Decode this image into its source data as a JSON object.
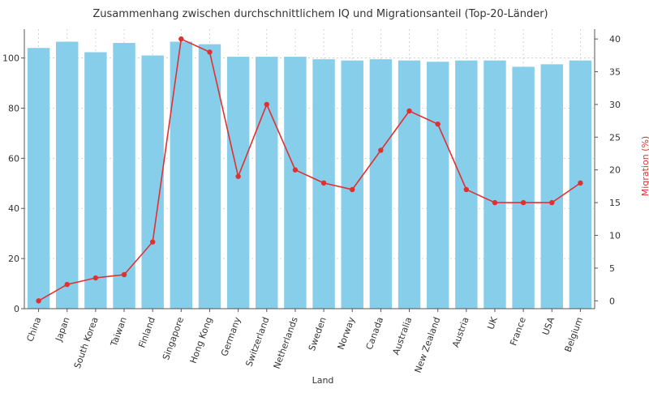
{
  "chart_data": {
    "type": "bar",
    "title": "Zusammenhang zwischen durchschnittlichem IQ und Migrationsanteil (Top-20-Länder)",
    "xlabel": "Land",
    "ylabel": "",
    "y2label": "Migration (%)",
    "categories": [
      "China",
      "Japan",
      "South Korea",
      "Taiwan",
      "Finland",
      "Singapore",
      "Hong Kong",
      "Germany",
      "Switzerland",
      "Netherlands",
      "Sweden",
      "Norway",
      "Canada",
      "Australia",
      "New Zealand",
      "Austria",
      "UK",
      "France",
      "USA",
      "Belgium"
    ],
    "series": [
      {
        "type": "bar",
        "axis": "left",
        "color": "#87ceeb",
        "values": [
          104,
          106.5,
          102.3,
          106,
          101,
          106.5,
          105.5,
          100.5,
          100.5,
          100.5,
          99.5,
          99,
          99.5,
          99,
          98.5,
          99,
          99,
          96.5,
          97.5,
          99
        ]
      },
      {
        "type": "line",
        "axis": "right",
        "color": "#e03030",
        "values": [
          0,
          2.5,
          3.5,
          4,
          9,
          40,
          38,
          19,
          30,
          20,
          18,
          17,
          23,
          29,
          27,
          17,
          15,
          15,
          15,
          18
        ]
      }
    ],
    "ylim": [
      0,
      111.5
    ],
    "y2lim": [
      -1.2,
      41.5
    ],
    "yticks": [
      0,
      20,
      40,
      60,
      80,
      100
    ],
    "y2ticks": [
      0,
      5,
      10,
      15,
      20,
      25,
      30,
      35,
      40
    ],
    "grid": true
  }
}
